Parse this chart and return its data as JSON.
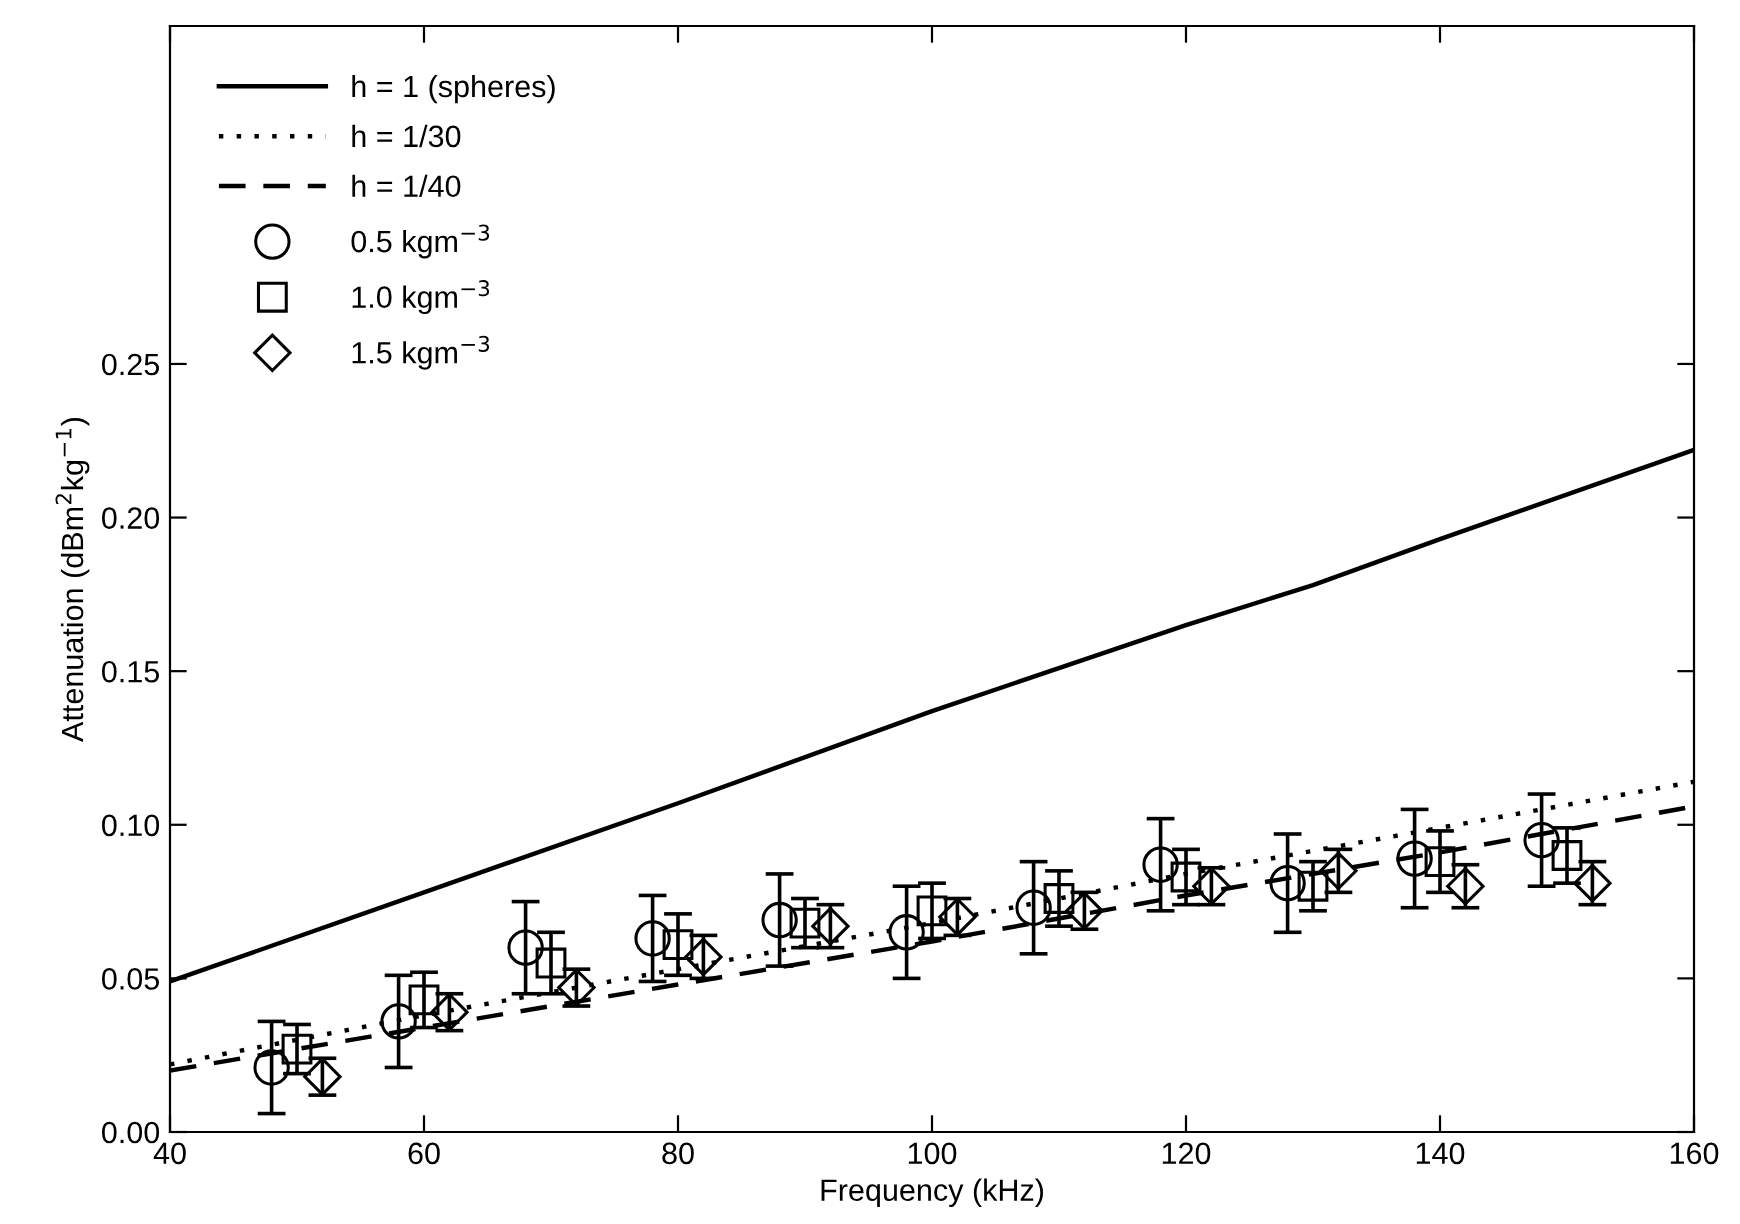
{
  "chart_data": {
    "type": "line",
    "xlabel": "Frequency (kHz)",
    "ylabel": "Attenuation (dBm$^{2}$kg$^{−1}$)",
    "xlim": [
      40,
      160
    ],
    "ylim": [
      0,
      0.36
    ],
    "xticks": [
      40,
      60,
      80,
      100,
      120,
      140,
      160
    ],
    "yticks": [
      {
        "value": 0,
        "label": "0.00"
      },
      {
        "value": 0.05,
        "label": "0.05"
      },
      {
        "value": 0.1,
        "label": "0.10"
      },
      {
        "value": 0.15,
        "label": "0.15"
      },
      {
        "value": 0.2,
        "label": "0.20"
      },
      {
        "value": 0.25,
        "label": "0.25"
      }
    ],
    "grid": false,
    "legend": "top left",
    "series": [
      {
        "name": "h = 1 (spheres)",
        "line_style": "solid",
        "marker": "none",
        "color": "#000000",
        "x": [
          40,
          60,
          80,
          100,
          120,
          130,
          140,
          160
        ],
        "values": [
          0.049,
          0.078,
          0.107,
          0.137,
          0.165,
          0.178,
          0.193,
          0.222
        ]
      },
      {
        "name": "h = 1/30",
        "line_style": "dotted",
        "marker": "none",
        "color": "#000000",
        "x": [
          40,
          60,
          80,
          100,
          120,
          140,
          160
        ],
        "values": [
          0.022,
          0.038,
          0.053,
          0.068,
          0.084,
          0.099,
          0.114
        ]
      },
      {
        "name": "h = 1/40",
        "line_style": "dashed",
        "marker": "none",
        "color": "#000000",
        "x": [
          40,
          60,
          80,
          100,
          120,
          140,
          160
        ],
        "values": [
          0.02,
          0.034,
          0.048,
          0.062,
          0.077,
          0.091,
          0.106
        ]
      },
      {
        "name": "0.5 kgm$^{−3}$",
        "type": "scatter",
        "marker": "circle",
        "color": "#000000",
        "x": [
          48,
          58,
          68,
          78,
          88,
          98,
          108,
          118,
          128,
          138,
          148
        ],
        "values": [
          0.021,
          0.036,
          0.06,
          0.063,
          0.069,
          0.065,
          0.073,
          0.087,
          0.081,
          0.089,
          0.095
        ],
        "errors": [
          0.015,
          0.015,
          0.015,
          0.014,
          0.015,
          0.015,
          0.015,
          0.015,
          0.016,
          0.016,
          0.015
        ]
      },
      {
        "name": "1.0 kgm$^{−3}$",
        "type": "scatter",
        "marker": "square",
        "color": "#000000",
        "x": [
          50,
          60,
          70,
          80,
          90,
          100,
          110,
          120,
          130,
          140,
          150
        ],
        "values": [
          0.027,
          0.043,
          0.055,
          0.061,
          0.068,
          0.072,
          0.076,
          0.083,
          0.08,
          0.088,
          0.09
        ],
        "errors": [
          0.008,
          0.009,
          0.01,
          0.01,
          0.008,
          0.009,
          0.009,
          0.009,
          0.008,
          0.01,
          0.009
        ]
      },
      {
        "name": "1.5 kgm$^{−3}$",
        "type": "scatter",
        "marker": "diamond",
        "color": "#000000",
        "x": [
          52,
          62,
          72,
          82,
          92,
          102,
          112,
          122,
          132,
          142,
          152
        ],
        "values": [
          0.018,
          0.039,
          0.047,
          0.057,
          0.067,
          0.07,
          0.072,
          0.08,
          0.085,
          0.08,
          0.081
        ],
        "errors": [
          0.006,
          0.006,
          0.006,
          0.007,
          0.007,
          0.006,
          0.006,
          0.006,
          0.007,
          0.007,
          0.007
        ]
      }
    ]
  }
}
